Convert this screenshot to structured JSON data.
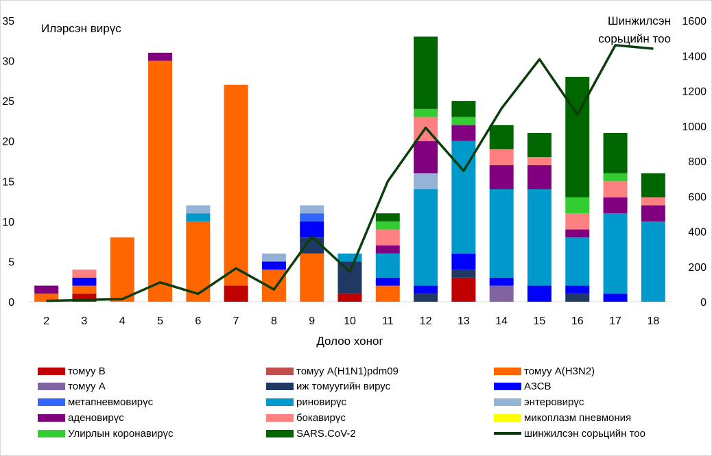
{
  "chart_data": {
    "type": "bar",
    "stacked": true,
    "categories": [
      "2",
      "3",
      "4",
      "5",
      "6",
      "7",
      "8",
      "9",
      "10",
      "11",
      "12",
      "13",
      "14",
      "15",
      "16",
      "17",
      "18"
    ],
    "xlabel": "Долоо хоног",
    "ylabel_left": "Илэрсэн вирүс",
    "ylabel_right": "Шинжилсэн сорьцийн тоо",
    "ylim_left": [
      0,
      35
    ],
    "yticks_left": [
      0,
      5,
      10,
      15,
      20,
      25,
      30,
      35
    ],
    "ylim_right": [
      0,
      1600
    ],
    "yticks_right": [
      0,
      200,
      400,
      600,
      800,
      1000,
      1200,
      1400,
      1600
    ],
    "grid": false,
    "legend_position": "bottom",
    "series": [
      {
        "name": "томуу В",
        "color": "#c00000",
        "values": [
          0,
          1,
          0,
          0,
          0,
          2,
          0,
          0,
          1,
          0,
          0,
          3,
          0,
          0,
          0,
          0,
          0
        ]
      },
      {
        "name": "томуу A(H1N1)pdm09",
        "color": "#c0504d",
        "values": [
          0,
          0,
          0,
          0,
          0,
          0,
          0,
          0,
          0,
          0,
          0,
          0,
          0,
          0,
          0,
          0,
          0
        ]
      },
      {
        "name": "томуу A(H3N2)",
        "color": "#ff6600",
        "values": [
          1,
          1,
          8,
          30,
          10,
          25,
          4,
          6,
          0,
          2,
          0,
          0,
          0,
          0,
          0,
          0,
          0
        ]
      },
      {
        "name": "томуу A",
        "color": "#8064a2",
        "values": [
          0,
          0,
          0,
          0,
          0,
          0,
          0,
          0,
          0,
          0,
          0,
          0,
          2,
          0,
          0,
          0,
          0
        ]
      },
      {
        "name": "иж томуугийн вирус",
        "color": "#1f3864",
        "values": [
          0,
          0,
          0,
          0,
          0,
          0,
          0,
          2,
          4,
          0,
          1,
          1,
          0,
          0,
          1,
          0,
          0
        ]
      },
      {
        "name": "АЗСВ",
        "color": "#0000ff",
        "values": [
          0,
          1,
          0,
          0,
          0,
          0,
          1,
          2,
          0,
          1,
          1,
          2,
          1,
          2,
          1,
          1,
          0
        ]
      },
      {
        "name": "метапневмовирүс",
        "color": "#3366ff",
        "values": [
          0,
          0,
          0,
          0,
          0,
          0,
          0,
          1,
          0,
          0,
          0,
          0,
          0,
          0,
          0,
          0,
          0
        ]
      },
      {
        "name": "риновирүс",
        "color": "#0099cc",
        "values": [
          0,
          0,
          0,
          0,
          1,
          0,
          0,
          0,
          1,
          3,
          12,
          14,
          11,
          12,
          6,
          10,
          10
        ]
      },
      {
        "name": "энтеровирүс",
        "color": "#95b3d7",
        "values": [
          0,
          0,
          0,
          0,
          1,
          0,
          1,
          1,
          0,
          0,
          2,
          0,
          0,
          0,
          0,
          0,
          0
        ]
      },
      {
        "name": "аденовирүс",
        "color": "#800080",
        "values": [
          1,
          0,
          0,
          1,
          0,
          0,
          0,
          0,
          0,
          1,
          4,
          2,
          3,
          3,
          1,
          2,
          2
        ]
      },
      {
        "name": "бокавирүс",
        "color": "#ff8080",
        "values": [
          0,
          1,
          0,
          0,
          0,
          0,
          0,
          0,
          0,
          2,
          3,
          0,
          2,
          1,
          2,
          2,
          1
        ]
      },
      {
        "name": "микоплазм пневмония",
        "color": "#ffff00",
        "values": [
          0,
          0,
          0,
          0,
          0,
          0,
          0,
          0,
          0,
          0,
          0,
          0,
          0,
          0,
          0,
          0,
          0
        ]
      },
      {
        "name": "Улирлын коронавирүс",
        "color": "#33cc33",
        "values": [
          0,
          0,
          0,
          0,
          0,
          0,
          0,
          0,
          0,
          1,
          1,
          1,
          0,
          0,
          2,
          1,
          0
        ]
      },
      {
        "name": "SARS.CoV-2",
        "color": "#006600",
        "values": [
          0,
          0,
          0,
          0,
          0,
          0,
          0,
          0,
          0,
          1,
          9,
          2,
          3,
          3,
          15,
          5,
          3
        ]
      }
    ],
    "line_series": {
      "name": "шинжилсэн сорьцийн тоо",
      "color": "#0b3d0b",
      "axis": "right",
      "values": [
        5,
        10,
        15,
        110,
        45,
        190,
        70,
        370,
        170,
        685,
        990,
        745,
        1100,
        1380,
        1065,
        1460,
        1440
      ]
    }
  }
}
